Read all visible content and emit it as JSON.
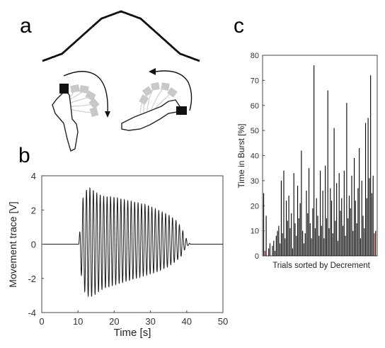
{
  "panels": {
    "a": "a",
    "b": "b",
    "c": "c"
  },
  "chart_data": [
    {
      "panel": "a",
      "type": "line",
      "series": [
        {
          "x": [
            0,
            0.125,
            0.25,
            0.375,
            0.5,
            0.625,
            0.75,
            0.875,
            1
          ],
          "values": [
            0,
            0.146,
            0.5,
            0.854,
            1,
            0.854,
            0.5,
            0.146,
            0
          ]
        }
      ]
    },
    {
      "panel": "b",
      "type": "line",
      "xlabel": "Time [s]",
      "ylabel": "Movement trace [V]",
      "xlim": [
        0,
        50
      ],
      "ylim": [
        -4,
        4
      ],
      "xticks": [
        0,
        10,
        20,
        30,
        40,
        50
      ],
      "yticks": [
        -4,
        -2,
        0,
        2,
        4
      ],
      "grid": false,
      "series": [
        {
          "x": [
            0,
            10.2,
            11.2,
            12.4,
            13.5,
            15,
            17,
            20,
            23,
            26,
            29,
            32,
            35,
            37,
            38.5,
            39.5,
            40.2,
            41,
            50
          ],
          "envelope_peak": [
            0,
            0,
            2.6,
            3.2,
            3.3,
            3.0,
            2.8,
            2.75,
            2.6,
            2.45,
            2.3,
            2.0,
            1.7,
            1.4,
            1.0,
            0.5,
            0.2,
            0,
            0
          ],
          "envelope_trough": [
            0,
            0,
            -2.5,
            -3.0,
            -3.1,
            -2.9,
            -2.6,
            -2.4,
            -2.2,
            -2.0,
            -1.8,
            -1.6,
            -1.3,
            -1.0,
            -0.7,
            -0.3,
            -0.1,
            0,
            0
          ],
          "oscillation_period_s": 0.95
        }
      ]
    },
    {
      "panel": "c",
      "type": "bar",
      "xlabel": "Trials sorted by Decrement",
      "ylabel": "Time in Burst [%]",
      "ylim": [
        0,
        80
      ],
      "yticks": [
        0,
        10,
        20,
        30,
        40,
        50,
        60,
        70,
        80
      ],
      "grid": false,
      "values": [
        25,
        2,
        16,
        0,
        3,
        5,
        0,
        4,
        6,
        2,
        8,
        10,
        12,
        5,
        30,
        9,
        34,
        7,
        22,
        14,
        24,
        11,
        17,
        3,
        33,
        13,
        8,
        28,
        15,
        21,
        42,
        10,
        5,
        9,
        26,
        17,
        35,
        13,
        7,
        19,
        76,
        11,
        23,
        16,
        8,
        34,
        12,
        26,
        7,
        36,
        15,
        66,
        11,
        27,
        22,
        9,
        51,
        14,
        29,
        6,
        33,
        18,
        23,
        12,
        34,
        8,
        61,
        15,
        24,
        19,
        32,
        10,
        39,
        22,
        13,
        27,
        43,
        7,
        30,
        16,
        11,
        53,
        23,
        55,
        31,
        72,
        25,
        32,
        9,
        10
      ]
    }
  ]
}
